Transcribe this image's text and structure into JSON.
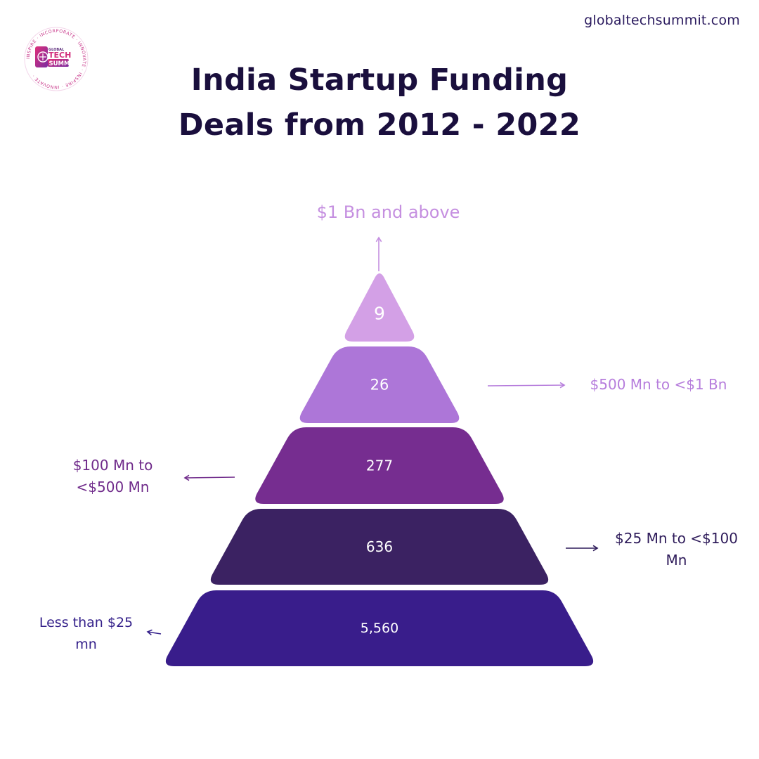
{
  "header": {
    "site": "globaltechsummit.com",
    "logo": {
      "ring_text": "INSPIRE · INCORPORATE · INNOVATE · INSPIRE · INNOVATE ·",
      "word1": "GLOBAL",
      "word2": "TECH",
      "word3": "SUMMIT"
    }
  },
  "title": {
    "line1": "India Startup Funding",
    "line2": "Deals from 2012 - 2022"
  },
  "colors": {
    "title": "#1a0f3d",
    "level1": "#d3a0e6",
    "level2": "#ad76d8",
    "level3": "#762d90",
    "level4": "#3b2262",
    "level5": "#391d8b",
    "label1": "#c58fe0",
    "label2": "#b67ddc",
    "label3": "#6f2a8a",
    "label4": "#2e1b5a",
    "label5": "#34208a"
  },
  "chart_data": {
    "type": "pyramid",
    "title": "India Startup Funding Deals from 2012 - 2022",
    "categories": [
      "$1 Bn and above",
      "$500 Mn to <$1 Bn",
      "$100 Mn to <$500 Mn",
      "$25 Mn to <$100 Mn",
      "Less than $25 mn"
    ],
    "values": [
      9,
      26,
      277,
      636,
      5560
    ],
    "value_labels": [
      "9",
      "26",
      "277",
      "636",
      "5,560"
    ],
    "label_lines": [
      [
        "$1 Bn and above"
      ],
      [
        "$500 Mn to <$1 Bn"
      ],
      [
        "$100 Mn to",
        "<$500 Mn"
      ],
      [
        "$25 Mn to <$100",
        "Mn"
      ],
      [
        "Less than $25",
        "mn"
      ]
    ]
  }
}
